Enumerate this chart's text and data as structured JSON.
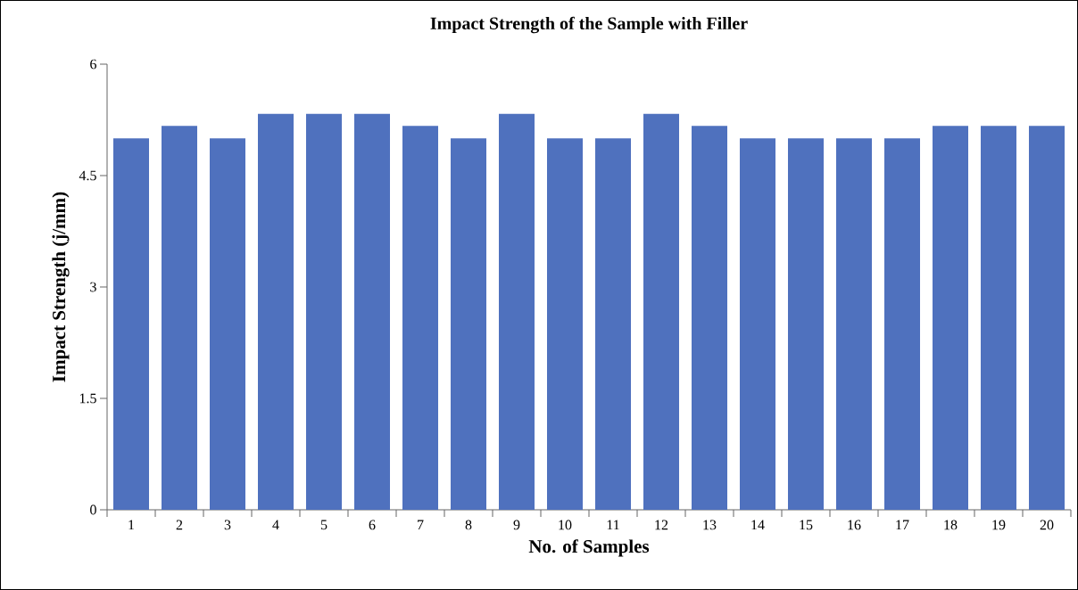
{
  "chart_data": {
    "type": "bar",
    "title": "Impact Strength of the Sample with Filler",
    "xlabel": "No. of Samples",
    "ylabel": "Impact Strength (j/mm)",
    "categories": [
      "1",
      "2",
      "3",
      "4",
      "5",
      "6",
      "7",
      "8",
      "9",
      "10",
      "11",
      "12",
      "13",
      "14",
      "15",
      "16",
      "17",
      "18",
      "19",
      "20"
    ],
    "values": [
      5,
      5.17,
      5,
      5.33,
      5.33,
      5.33,
      5.17,
      5,
      5.33,
      5,
      5,
      5.33,
      5.17,
      5,
      5,
      5,
      5,
      5.17,
      5.17,
      5.17
    ],
    "color": "#4f71be",
    "ylim": [
      0,
      6
    ],
    "yticks": [
      0,
      1.5,
      3,
      4.5,
      6
    ],
    "grid": false
  }
}
